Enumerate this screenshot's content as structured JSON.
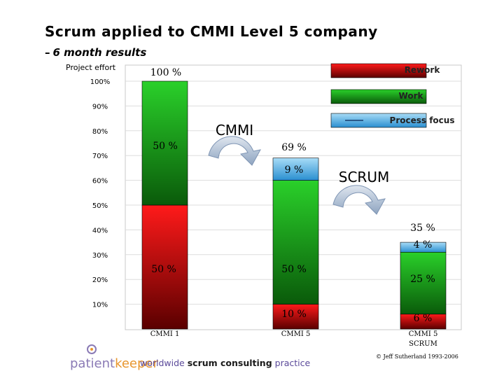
{
  "slide": {
    "title": "Scrum applied to CMMI Level 5 company",
    "subtitle_dash": "–",
    "subtitle": "6 month results",
    "footer_prefix": "worldwide",
    "footer_bold": "scrum consulting",
    "footer_suffix": "practice",
    "copyright": "© Jeff Sutherland 1993-2006",
    "logo_part1": "patient",
    "logo_part2": "keeper"
  },
  "chart_data": {
    "type": "bar",
    "stacked": true,
    "ylabel": "Project effort",
    "ylim": [
      0,
      100
    ],
    "yticks": [
      "10%",
      "20%",
      "30%",
      "40%",
      "50%",
      "60%",
      "70%",
      "80%",
      "90%",
      "100%"
    ],
    "categories": [
      "CMMI 1",
      "CMMI 5",
      "CMMI 5 SCRUM"
    ],
    "series": [
      {
        "name": "Rework",
        "color": "#e8000b",
        "values": [
          50,
          10,
          6
        ]
      },
      {
        "name": "Work",
        "color": "#22cc22",
        "values": [
          50,
          50,
          25
        ]
      },
      {
        "name": "Process focus",
        "color": "#4fb1e8",
        "values": [
          0,
          9,
          4
        ]
      }
    ],
    "totals": [
      100,
      69,
      35
    ],
    "labels": {
      "totals": [
        "100 %",
        "69 %",
        "35 %"
      ],
      "rework": [
        "50 %",
        "10 %",
        "6 %"
      ],
      "work": [
        "50 %",
        "50 %",
        "25 %"
      ],
      "process": [
        "",
        "9 %",
        "4 %"
      ]
    },
    "annotations": [
      "CMMI",
      "SCRUM"
    ],
    "legend_position": "top-right"
  }
}
